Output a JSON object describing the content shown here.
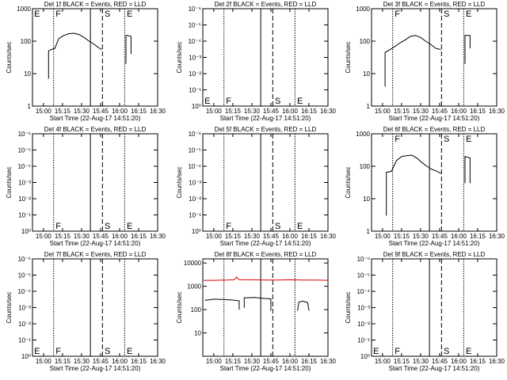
{
  "chart_data": [
    {
      "type": "line",
      "title": "Det 1f BLACK = Events, RED = LLD",
      "xlabel": "Start Time (22-Aug-17 14:51:20)",
      "ylabel": "Counts/sec",
      "xlim": [
        891.33,
        990
      ],
      "xticks": [
        {
          "value": 900,
          "label": "15:00"
        },
        {
          "value": 915,
          "label": "15:15"
        },
        {
          "value": 930,
          "label": "15:30"
        },
        {
          "value": 945,
          "label": "15:45"
        },
        {
          "value": 960,
          "label": "16:00"
        },
        {
          "value": 975,
          "label": "16:15"
        },
        {
          "value": 990,
          "label": "16:30"
        }
      ],
      "ylim": [
        1,
        1000
      ],
      "yticks": [
        1,
        10,
        100,
        1000
      ],
      "log_y": true,
      "markers": [
        {
          "x": 908,
          "style": "dotted"
        },
        {
          "x": 937,
          "style": "solid"
        },
        {
          "x": 946.5,
          "style": "dashed"
        },
        {
          "x": 964,
          "style": "dotted"
        }
      ],
      "label_position": "top",
      "marker_labels": [
        {
          "text": "E",
          "x": 892
        },
        {
          "text": "F",
          "x": 909
        },
        {
          "text": "S",
          "x": 947.5
        },
        {
          "text": "E",
          "x": 965
        }
      ],
      "series": [
        {
          "color": "#000000",
          "x": [
            904,
            904,
            906,
            909,
            912,
            916,
            920,
            924,
            928,
            932,
            936,
            940,
            943,
            946,
            null,
            965,
            965,
            966,
            969,
            969
          ],
          "values": [
            7,
            50,
            55,
            60,
            120,
            150,
            170,
            175,
            160,
            130,
            100,
            80,
            65,
            55,
            null,
            20,
            150,
            150,
            140,
            40
          ]
        }
      ]
    },
    {
      "type": "line",
      "title": "Det 2f BLACK = Events, RED = LLD",
      "xlabel": "Start Time (22-Aug-17 14:51:20)",
      "ylabel": "Counts/sec",
      "xlim": [
        891.33,
        990
      ],
      "xticks": [
        {
          "value": 900,
          "label": "15:00"
        },
        {
          "value": 915,
          "label": "15:15"
        },
        {
          "value": 930,
          "label": "15:30"
        },
        {
          "value": 945,
          "label": "15:45"
        },
        {
          "value": 960,
          "label": "16:00"
        },
        {
          "value": 975,
          "label": "16:15"
        },
        {
          "value": 990,
          "label": "16:30"
        }
      ],
      "ylim": [
        1,
        1e-06
      ],
      "yticks": [
        {
          "value": 1,
          "label": "10⁰"
        },
        {
          "value": 0.1,
          "label": "10⁻¹"
        },
        {
          "value": 0.01,
          "label": "10⁻²"
        },
        {
          "value": 0.001,
          "label": "10⁻³"
        },
        {
          "value": 0.0001,
          "label": "10⁻⁴"
        },
        {
          "value": 1e-05,
          "label": "10⁻⁵"
        },
        {
          "value": 1e-06,
          "label": "10⁻⁶"
        }
      ],
      "log_y": true,
      "markers": [
        {
          "x": 908,
          "style": "dotted"
        },
        {
          "x": 937,
          "style": "solid"
        },
        {
          "x": 946.5,
          "style": "dashed"
        },
        {
          "x": 964,
          "style": "dotted"
        }
      ],
      "label_position": "bottom",
      "marker_labels": [
        {
          "text": "E",
          "x": 892
        },
        {
          "text": "F",
          "x": 909
        },
        {
          "text": "S",
          "x": 947.5
        },
        {
          "text": "E",
          "x": 965
        }
      ],
      "series": []
    },
    {
      "type": "line",
      "title": "Det 3f BLACK = Events, RED = LLD",
      "xlabel": "Start Time (22-Aug-17 14:51:20)",
      "ylabel": "Counts/sec",
      "xlim": [
        891.33,
        990
      ],
      "xticks": [
        {
          "value": 900,
          "label": "15:00"
        },
        {
          "value": 915,
          "label": "15:15"
        },
        {
          "value": 930,
          "label": "15:30"
        },
        {
          "value": 945,
          "label": "15:45"
        },
        {
          "value": 960,
          "label": "16:00"
        },
        {
          "value": 975,
          "label": "16:15"
        },
        {
          "value": 990,
          "label": "16:30"
        }
      ],
      "ylim": [
        1,
        1000
      ],
      "yticks": [
        1,
        10,
        100,
        1000
      ],
      "log_y": true,
      "markers": [
        {
          "x": 908,
          "style": "dotted"
        },
        {
          "x": 937,
          "style": "solid"
        },
        {
          "x": 946.5,
          "style": "dashed"
        },
        {
          "x": 964,
          "style": "dotted"
        }
      ],
      "label_position": "top",
      "marker_labels": [
        {
          "text": "F",
          "x": 909
        },
        {
          "text": "S",
          "x": 947.5
        },
        {
          "text": "E",
          "x": 965
        }
      ],
      "series": [
        {
          "color": "#000000",
          "x": [
            902,
            902,
            906,
            910,
            914,
            918,
            922,
            926,
            930,
            934,
            938,
            942,
            946,
            null,
            965,
            965,
            969,
            969
          ],
          "values": [
            4,
            45,
            55,
            70,
            90,
            110,
            140,
            150,
            130,
            100,
            80,
            60,
            55,
            null,
            20,
            150,
            150,
            60
          ]
        }
      ]
    },
    {
      "type": "line",
      "title": "Det 4f BLACK = Events, RED = LLD",
      "xlabel": "Start Time (22-Aug-17 14:51:20)",
      "ylabel": "Counts/sec",
      "xlim": [
        891.33,
        990
      ],
      "xticks": [
        {
          "value": 900,
          "label": "15:00"
        },
        {
          "value": 915,
          "label": "15:15"
        },
        {
          "value": 930,
          "label": "15:30"
        },
        {
          "value": 945,
          "label": "15:45"
        },
        {
          "value": 960,
          "label": "16:00"
        },
        {
          "value": 975,
          "label": "16:15"
        },
        {
          "value": 990,
          "label": "16:30"
        }
      ],
      "ylim": [
        1,
        1e-06
      ],
      "yticks": [
        {
          "value": 1,
          "label": "10⁰"
        },
        {
          "value": 0.1,
          "label": "10⁻¹"
        },
        {
          "value": 0.01,
          "label": "10⁻²"
        },
        {
          "value": 0.001,
          "label": "10⁻³"
        },
        {
          "value": 0.0001,
          "label": "10⁻⁴"
        },
        {
          "value": 1e-05,
          "label": "10⁻⁵"
        },
        {
          "value": 1e-06,
          "label": "10⁻⁶"
        }
      ],
      "log_y": true,
      "markers": [
        {
          "x": 908,
          "style": "dotted"
        },
        {
          "x": 937,
          "style": "solid"
        },
        {
          "x": 946.5,
          "style": "dashed"
        },
        {
          "x": 964,
          "style": "dotted"
        }
      ],
      "label_position": "bottom",
      "marker_labels": [
        {
          "text": "F",
          "x": 909
        },
        {
          "text": "S",
          "x": 947.5
        },
        {
          "text": "E",
          "x": 965
        }
      ],
      "series": []
    },
    {
      "type": "line",
      "title": "Det 5f BLACK = Events, RED = LLD",
      "xlabel": "Start Time (22-Aug-17 14:51:20)",
      "ylabel": "Counts/sec",
      "xlim": [
        891.33,
        990
      ],
      "xticks": [
        {
          "value": 900,
          "label": "15:00"
        },
        {
          "value": 915,
          "label": "15:15"
        },
        {
          "value": 930,
          "label": "15:30"
        },
        {
          "value": 945,
          "label": "15:45"
        },
        {
          "value": 960,
          "label": "16:00"
        },
        {
          "value": 975,
          "label": "16:15"
        },
        {
          "value": 990,
          "label": "16:30"
        }
      ],
      "ylim": [
        1,
        1e-06
      ],
      "yticks": [
        {
          "value": 1,
          "label": "10⁰"
        },
        {
          "value": 0.1,
          "label": "10⁻¹"
        },
        {
          "value": 0.01,
          "label": "10⁻²"
        },
        {
          "value": 0.001,
          "label": "10⁻³"
        },
        {
          "value": 0.0001,
          "label": "10⁻⁴"
        },
        {
          "value": 1e-05,
          "label": "10⁻⁵"
        },
        {
          "value": 1e-06,
          "label": "10⁻⁶"
        }
      ],
      "log_y": true,
      "markers": [
        {
          "x": 908,
          "style": "dotted"
        },
        {
          "x": 937,
          "style": "solid"
        },
        {
          "x": 946.5,
          "style": "dashed"
        },
        {
          "x": 964,
          "style": "dotted"
        }
      ],
      "label_position": "bottom",
      "marker_labels": [
        {
          "text": "F",
          "x": 909
        },
        {
          "text": "S",
          "x": 947.5
        },
        {
          "text": "E",
          "x": 965
        }
      ],
      "series": []
    },
    {
      "type": "line",
      "title": "Det 6f BLACK = Events, RED = LLD",
      "xlabel": "Start Time (22-Aug-17 14:51:20)",
      "ylabel": "Counts/sec",
      "xlim": [
        891.33,
        990
      ],
      "xticks": [
        {
          "value": 900,
          "label": "15:00"
        },
        {
          "value": 915,
          "label": "15:15"
        },
        {
          "value": 930,
          "label": "15:30"
        },
        {
          "value": 945,
          "label": "15:45"
        },
        {
          "value": 960,
          "label": "16:00"
        },
        {
          "value": 975,
          "label": "16:15"
        },
        {
          "value": 990,
          "label": "16:30"
        }
      ],
      "ylim": [
        1,
        1000
      ],
      "yticks": [
        1,
        10,
        100,
        1000
      ],
      "log_y": true,
      "markers": [
        {
          "x": 908,
          "style": "dotted"
        },
        {
          "x": 937,
          "style": "solid"
        },
        {
          "x": 946.5,
          "style": "dashed"
        },
        {
          "x": 964,
          "style": "dotted"
        }
      ],
      "label_position": "top",
      "marker_labels": [
        {
          "text": "F",
          "x": 909
        },
        {
          "text": "S",
          "x": 947.5
        },
        {
          "text": "E",
          "x": 965
        }
      ],
      "series": [
        {
          "color": "#000000",
          "x": [
            903,
            903,
            907,
            911,
            915,
            919,
            923,
            927,
            931,
            935,
            939,
            943,
            946,
            null,
            965,
            965,
            969,
            969
          ],
          "values": [
            3,
            65,
            70,
            150,
            200,
            210,
            220,
            180,
            130,
            100,
            80,
            70,
            60,
            null,
            30,
            200,
            180,
            30
          ]
        }
      ]
    },
    {
      "type": "line",
      "title": "Det 7f BLACK = Events, RED = LLD",
      "xlabel": "Start Time (22-Aug-17 14:51:20)",
      "ylabel": "Counts/sec",
      "xlim": [
        891.33,
        990
      ],
      "xticks": [
        {
          "value": 900,
          "label": "15:00"
        },
        {
          "value": 915,
          "label": "15:15"
        },
        {
          "value": 930,
          "label": "15:30"
        },
        {
          "value": 945,
          "label": "15:45"
        },
        {
          "value": 960,
          "label": "16:00"
        },
        {
          "value": 975,
          "label": "16:15"
        },
        {
          "value": 990,
          "label": "16:30"
        }
      ],
      "ylim": [
        1,
        1e-06
      ],
      "yticks": [
        {
          "value": 1,
          "label": "10⁰"
        },
        {
          "value": 0.1,
          "label": "10⁻¹"
        },
        {
          "value": 0.01,
          "label": "10⁻²"
        },
        {
          "value": 0.001,
          "label": "10⁻³"
        },
        {
          "value": 0.0001,
          "label": "10⁻⁴"
        },
        {
          "value": 1e-05,
          "label": "10⁻⁵"
        },
        {
          "value": 1e-06,
          "label": "10⁻⁶"
        }
      ],
      "log_y": true,
      "markers": [
        {
          "x": 908,
          "style": "dotted"
        },
        {
          "x": 937,
          "style": "solid"
        },
        {
          "x": 946.5,
          "style": "dashed"
        },
        {
          "x": 964,
          "style": "dotted"
        }
      ],
      "label_position": "bottom",
      "marker_labels": [
        {
          "text": "E",
          "x": 892
        },
        {
          "text": "F",
          "x": 909
        },
        {
          "text": "S",
          "x": 947.5
        },
        {
          "text": "E",
          "x": 965
        }
      ],
      "series": []
    },
    {
      "type": "line",
      "title": "Det 8f BLACK = Events, RED = LLD",
      "xlabel": "Start Time (22-Aug-17 14:51:20)",
      "ylabel": "Counts/sec",
      "xlim": [
        891.33,
        990
      ],
      "xticks": [
        {
          "value": 900,
          "label": "15:00"
        },
        {
          "value": 915,
          "label": "15:15"
        },
        {
          "value": 930,
          "label": "15:30"
        },
        {
          "value": 945,
          "label": "15:45"
        },
        {
          "value": 960,
          "label": "16:00"
        },
        {
          "value": 975,
          "label": "16:15"
        },
        {
          "value": 990,
          "label": "16:30"
        }
      ],
      "ylim": [
        1,
        15000
      ],
      "yticks": [
        10,
        100,
        1000,
        10000
      ],
      "log_y": true,
      "markers": [
        {
          "x": 908,
          "style": "dotted"
        },
        {
          "x": 937,
          "style": "solid"
        },
        {
          "x": 946.5,
          "style": "dashed"
        },
        {
          "x": 964,
          "style": "dotted"
        }
      ],
      "label_position": "top",
      "marker_labels": [],
      "series": [
        {
          "color": "#000000",
          "x": [
            893,
            900,
            908,
            914,
            920,
            920,
            null,
            924,
            924,
            932,
            940,
            945,
            945,
            null,
            966,
            967,
            970,
            974,
            975
          ],
          "values": [
            250,
            280,
            270,
            260,
            240,
            100,
            null,
            120,
            320,
            330,
            300,
            290,
            90,
            null,
            90,
            210,
            230,
            200,
            90
          ]
        },
        {
          "color": "#dd0000",
          "x": [
            892,
            900,
            910,
            916,
            918,
            920,
            930,
            940,
            950,
            960,
            970,
            980,
            990
          ],
          "values": [
            1800,
            1800,
            1850,
            1900,
            2500,
            1900,
            1900,
            1850,
            1850,
            1900,
            1850,
            1850,
            1800
          ]
        }
      ]
    },
    {
      "type": "line",
      "title": "Det 9f BLACK = Events, RED = LLD",
      "xlabel": "Start Time (22-Aug-17 14:51:20)",
      "ylabel": "Counts/sec",
      "xlim": [
        891.33,
        990
      ],
      "xticks": [
        {
          "value": 900,
          "label": "15:00"
        },
        {
          "value": 915,
          "label": "15:15"
        },
        {
          "value": 930,
          "label": "15:30"
        },
        {
          "value": 945,
          "label": "15:45"
        },
        {
          "value": 960,
          "label": "16:00"
        },
        {
          "value": 975,
          "label": "16:15"
        },
        {
          "value": 990,
          "label": "16:30"
        }
      ],
      "ylim": [
        1,
        1e-06
      ],
      "yticks": [
        {
          "value": 1,
          "label": "10⁰"
        },
        {
          "value": 0.1,
          "label": "10⁻¹"
        },
        {
          "value": 0.01,
          "label": "10⁻²"
        },
        {
          "value": 0.001,
          "label": "10⁻³"
        },
        {
          "value": 0.0001,
          "label": "10⁻⁴"
        },
        {
          "value": 1e-05,
          "label": "10⁻⁵"
        },
        {
          "value": 1e-06,
          "label": "10⁻⁶"
        }
      ],
      "log_y": true,
      "markers": [
        {
          "x": 908,
          "style": "dotted"
        },
        {
          "x": 937,
          "style": "solid"
        },
        {
          "x": 946.5,
          "style": "dashed"
        },
        {
          "x": 964,
          "style": "dotted"
        }
      ],
      "label_position": "bottom",
      "marker_labels": [
        {
          "text": "E",
          "x": 892
        },
        {
          "text": "F",
          "x": 909
        },
        {
          "text": "S",
          "x": 947.5
        },
        {
          "text": "E",
          "x": 965
        }
      ],
      "series": []
    }
  ]
}
